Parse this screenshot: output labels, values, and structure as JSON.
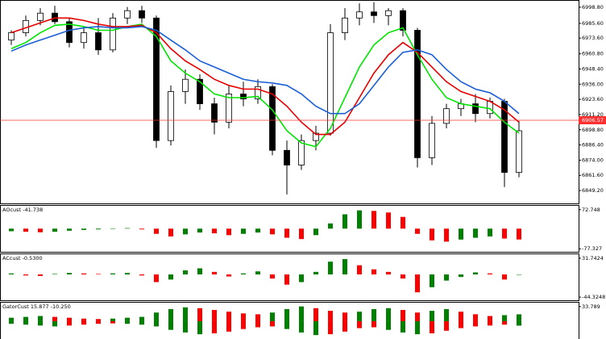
{
  "chart_data": [
    {
      "type": "candlestick",
      "open": [
        6972,
        6978,
        6988,
        6994,
        6987,
        6970,
        6978,
        6964,
        6990,
        6996,
        6990,
        6890,
        6930,
        6940,
        6920,
        6905,
        6928,
        6924,
        6934,
        6882,
        6870,
        6890,
        6896,
        6978,
        6990,
        6995,
        6992,
        6996,
        6980,
        6876,
        6904,
        6916,
        6920,
        6912,
        6922,
        6864
      ],
      "high": [
        6980,
        6992,
        6998,
        7000,
        6990,
        6982,
        6990,
        6994,
        6999,
        7000,
        6992,
        6935,
        6948,
        6944,
        6925,
        6935,
        6938,
        6940,
        6936,
        6890,
        6895,
        6902,
        6985,
        6998,
        7002,
        7003,
        6998,
        6998,
        6982,
        6910,
        6920,
        6924,
        6928,
        6925,
        6924,
        6906
      ],
      "low": [
        6968,
        6975,
        6984,
        6985,
        6966,
        6965,
        6960,
        6962,
        6985,
        6986,
        6884,
        6886,
        6920,
        6915,
        6895,
        6900,
        6918,
        6920,
        6878,
        6846,
        6866,
        6882,
        6894,
        6972,
        6984,
        6986,
        6984,
        6975,
        6868,
        6870,
        6900,
        6910,
        6905,
        6908,
        6852,
        6860
      ],
      "close": [
        6978,
        6988,
        6994,
        6987,
        6970,
        6978,
        6964,
        6990,
        6996,
        6990,
        6890,
        6930,
        6940,
        6920,
        6905,
        6928,
        6924,
        6934,
        6882,
        6870,
        6890,
        6896,
        6978,
        6990,
        6995,
        6992,
        6996,
        6980,
        6876,
        6904,
        6916,
        6920,
        6912,
        6922,
        6864,
        6898
      ],
      "up_color": "#ffffff",
      "down_color": "#000000",
      "series": [
        {
          "color": "#00e600",
          "values": [
            6965,
            6970,
            6978,
            6984,
            6985,
            6983,
            6980,
            6980,
            6983,
            6985,
            6975,
            6955,
            6945,
            6938,
            6928,
            6925,
            6925,
            6926,
            6915,
            6898,
            6888,
            6885,
            6900,
            6925,
            6950,
            6968,
            6978,
            6982,
            6960,
            6940,
            6925,
            6920,
            6918,
            6916,
            6905,
            6896
          ]
        },
        {
          "color": "#e60000",
          "values": [
            6978,
            6982,
            6986,
            6990,
            6990,
            6988,
            6985,
            6983,
            6983,
            6984,
            6978,
            6965,
            6955,
            6948,
            6940,
            6935,
            6932,
            6932,
            6928,
            6918,
            6905,
            6895,
            6895,
            6905,
            6925,
            6945,
            6960,
            6970,
            6962,
            6950,
            6938,
            6930,
            6926,
            6922,
            6915,
            6905
          ]
        },
        {
          "color": "#1a5fd6",
          "values": [
            6963,
            6968,
            6972,
            6976,
            6980,
            6982,
            6983,
            6982,
            6982,
            6983,
            6980,
            6972,
            6964,
            6955,
            6950,
            6945,
            6940,
            6938,
            6937,
            6935,
            6928,
            6918,
            6912,
            6912,
            6920,
            6935,
            6950,
            6962,
            6964,
            6960,
            6948,
            6938,
            6932,
            6929,
            6922,
            6912
          ]
        }
      ],
      "current_price": 6906.57,
      "current_color": "#ff3030",
      "ylim": [
        6838.7,
        7004.05
      ],
      "yticks": [
        {
          "value": 6998.8,
          "label": "6998.80"
        },
        {
          "value": 6985.6,
          "label": "6985.60"
        },
        {
          "value": 6973.6,
          "label": "6973.60"
        },
        {
          "value": 6960.8,
          "label": "6960.80"
        },
        {
          "value": 6948.4,
          "label": "6948.40"
        },
        {
          "value": 6936,
          "label": "6936.00"
        },
        {
          "value": 6923.6,
          "label": "6923.60"
        },
        {
          "value": 6911.2,
          "label": "6911.20"
        },
        {
          "value": 6898.8,
          "label": "6898.80"
        },
        {
          "value": 6886.4,
          "label": "6886.40"
        },
        {
          "value": 6874,
          "label": "6874.00"
        },
        {
          "value": 6861.6,
          "label": "6861.60"
        },
        {
          "value": 6849.2,
          "label": "6849.20"
        }
      ]
    },
    {
      "type": "histogram",
      "title": "AOcust -41.738",
      "values": [
        -10,
        -12,
        -14,
        -12,
        -8,
        -5,
        -3,
        -1,
        2,
        -3,
        -20,
        -30,
        -22,
        -15,
        -18,
        -25,
        -20,
        -15,
        -22,
        -35,
        -40,
        -25,
        20,
        55,
        70,
        68,
        62,
        45,
        -20,
        -45,
        -50,
        -42,
        -35,
        -30,
        -38,
        -41.738
      ],
      "up_color": "#008000",
      "down_color": "#ff0000",
      "ylim": [
        -89,
        87.5
      ],
      "yticks": [
        72.748,
        -77.327
      ]
    },
    {
      "type": "histogram",
      "title": "ACcust -0.5300",
      "values": [
        2,
        -2,
        -3,
        1,
        3,
        2,
        1,
        2,
        3,
        -2,
        -15,
        -10,
        8,
        12,
        5,
        -4,
        2,
        6,
        -8,
        -20,
        -15,
        5,
        25,
        30,
        18,
        10,
        5,
        -8,
        -35,
        -25,
        -12,
        -5,
        4,
        2,
        -10,
        -0.53
      ],
      "up_color": "#008000",
      "down_color": "#ff0000",
      "ylim": [
        -50.5,
        39.5
      ],
      "yticks": [
        31.7424,
        -44.3248
      ]
    },
    {
      "type": "gator",
      "title": "GatorCust 15.877 -10.250",
      "upper": [
        8,
        10,
        12,
        10,
        8,
        6,
        5,
        6,
        8,
        10,
        20,
        28,
        32,
        30,
        26,
        22,
        18,
        16,
        20,
        28,
        34,
        30,
        24,
        20,
        22,
        28,
        30,
        26,
        20,
        24,
        28,
        22,
        16,
        12,
        14,
        15.877
      ],
      "lower": [
        -6,
        -8,
        -10,
        -12,
        -10,
        -8,
        -6,
        -5,
        -6,
        -8,
        -12,
        -20,
        -26,
        -30,
        -28,
        -24,
        -18,
        -14,
        -12,
        -18,
        -26,
        -32,
        -30,
        -24,
        -16,
        -14,
        -20,
        -26,
        -30,
        -28,
        -22,
        -16,
        -12,
        -10,
        -8,
        -10.25
      ],
      "up_color": "#008000",
      "down_color": "#ff0000",
      "ylim": [
        -41,
        42.7
      ],
      "yticks": [
        33.789
      ]
    }
  ]
}
